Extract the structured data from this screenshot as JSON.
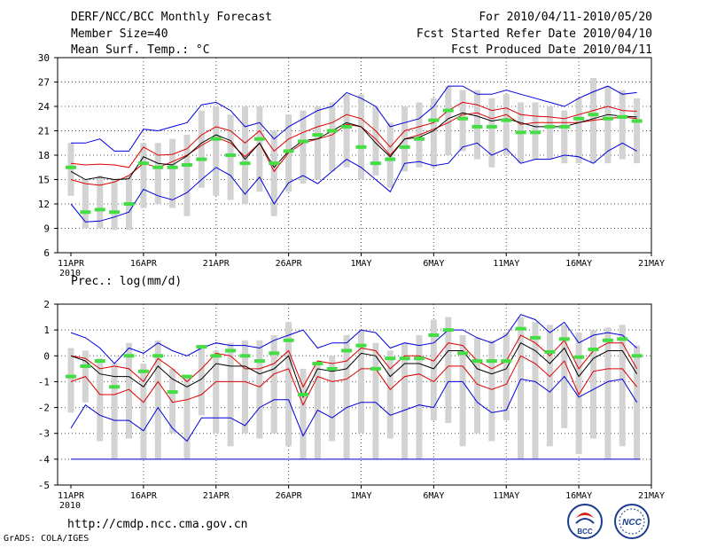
{
  "header": {
    "title": "DERF/NCC/BCC Monthly Forecast",
    "member_size": "Member Size=40",
    "variable": "Mean Surf. Temp.: °C",
    "period": "For 2010/04/11-2010/05/20",
    "refer_date": "Fcst Started Refer Date 2010/04/10",
    "produced_date": "Fcst Produced Date 2010/04/11"
  },
  "footer": {
    "url": "http://cmdp.ncc.cma.gov.cn",
    "credit": "GrADS: COLA/IGES",
    "logo_left": "BCC",
    "logo_right": "NCC"
  },
  "colors": {
    "bar": "#d3d3d3",
    "observed": "#44dd44",
    "ensemble_mean": "#000000",
    "spread": "#dd0000",
    "extreme": "#0000dd",
    "grid": "#555555"
  },
  "chart_data": [
    {
      "type": "line",
      "title": "Mean Surf. Temp.: °C",
      "ylim": [
        6,
        30
      ],
      "yticks": [
        6,
        9,
        12,
        15,
        18,
        21,
        24,
        27,
        30
      ],
      "xticks": [
        {
          "day": 0,
          "label": "11APR"
        },
        {
          "day": 5,
          "label": "16APR"
        },
        {
          "day": 10,
          "label": "21APR"
        },
        {
          "day": 15,
          "label": "26APR"
        },
        {
          "day": 20,
          "label": "1MAY"
        },
        {
          "day": 25,
          "label": "6MAY"
        },
        {
          "day": 30,
          "label": "11MAY"
        },
        {
          "day": 35,
          "label": "16MAY"
        },
        {
          "day": 40,
          "label": "21MAY"
        }
      ],
      "year_label": "2010",
      "series": [
        {
          "name": "max",
          "values": [
            12,
            9.8,
            9.9,
            10.4,
            11,
            13.8,
            13,
            12.5,
            13.4,
            15,
            16.5,
            15.5,
            13.2,
            15.3,
            12,
            14.6,
            15.5,
            14.5,
            16,
            17.5,
            16.5,
            15,
            13.5,
            17,
            17.2,
            16.7,
            17,
            19,
            19.5,
            18,
            18.8,
            17,
            17.5,
            17.5,
            18,
            17.8,
            17,
            18.5,
            19.5,
            18.5
          ]
        },
        {
          "name": "upper_spread",
          "values": [
            15,
            14.5,
            14.3,
            14.7,
            15.5,
            17,
            16.5,
            17.2,
            18,
            19.2,
            20.2,
            19.5,
            17.8,
            19.5,
            16,
            18.3,
            19.5,
            20,
            20.5,
            21.8,
            21.5,
            20,
            18,
            20,
            20.5,
            21.2,
            22,
            23,
            23.2,
            22.5,
            23,
            21.8,
            22,
            22,
            22,
            22,
            22.3,
            22.5,
            22.7,
            22.5
          ]
        },
        {
          "name": "mean",
          "values": [
            16,
            15,
            15.3,
            15,
            15.1,
            17.8,
            17,
            16.8,
            17.9,
            19.5,
            20.5,
            19.8,
            17.5,
            19.5,
            16.5,
            18.5,
            19.8,
            20,
            21,
            22,
            21.5,
            19.5,
            17.8,
            20,
            20.2,
            21,
            22.5,
            23.2,
            22.8,
            22.2,
            22.5,
            22,
            21.5,
            21.5,
            21.5,
            22,
            22.5,
            23,
            22.8,
            22.7
          ]
        },
        {
          "name": "lower_spread",
          "values": [
            17,
            16.8,
            16.9,
            16.8,
            16.5,
            19,
            18,
            18.1,
            18.8,
            20.5,
            21.5,
            21,
            19.5,
            21,
            18.5,
            20,
            20.8,
            21.5,
            22,
            23,
            22.5,
            21,
            19,
            21,
            21.5,
            22,
            23.5,
            24.5,
            24.2,
            23.5,
            23.8,
            23,
            22.8,
            22.7,
            22.5,
            23,
            23.5,
            24,
            23.5,
            23.4
          ]
        },
        {
          "name": "min",
          "values": [
            19.5,
            19.5,
            20,
            18.5,
            18.5,
            21.2,
            21,
            21.5,
            22,
            24.2,
            24.5,
            23.5,
            21.5,
            22,
            20,
            21.5,
            22.5,
            23.5,
            24,
            25.7,
            25,
            24,
            21.5,
            22,
            22.5,
            24,
            26.5,
            26.5,
            25.5,
            25.5,
            26,
            25.5,
            25,
            24.5,
            24,
            25,
            25.8,
            26.5,
            25.5,
            25.7
          ]
        },
        {
          "name": "observed",
          "values": [
            16.5,
            11,
            11.3,
            11,
            12,
            17,
            16.5,
            16.5,
            16.8,
            17.5,
            20,
            18,
            17,
            20,
            17,
            18.5,
            19.7,
            20.5,
            21,
            21.5,
            19,
            17,
            17.5,
            19,
            20,
            22.3,
            23.5,
            22.5,
            21.5,
            21.5,
            22.3,
            20.8,
            20.8,
            21.5,
            21.5,
            22.5,
            23,
            22.5,
            22.7,
            22.2
          ]
        }
      ],
      "bars": [
        [
          13,
          19.5
        ],
        [
          9,
          15
        ],
        [
          9,
          15.5
        ],
        [
          8.8,
          15
        ],
        [
          8.8,
          15.5
        ],
        [
          11.5,
          19.5
        ],
        [
          12,
          19.5
        ],
        [
          11.5,
          20
        ],
        [
          10.5,
          20.5
        ],
        [
          14,
          23.5
        ],
        [
          13,
          24
        ],
        [
          12.5,
          23
        ],
        [
          12,
          24
        ],
        [
          13.5,
          24
        ],
        [
          10.5,
          21
        ],
        [
          13.5,
          23
        ],
        [
          14.5,
          23.5
        ],
        [
          15,
          24
        ],
        [
          16,
          24.5
        ],
        [
          16.5,
          25.5
        ],
        [
          15,
          25.5
        ],
        [
          15.5,
          24
        ],
        [
          14,
          22
        ],
        [
          16,
          24
        ],
        [
          16.5,
          24.5
        ],
        [
          16.5,
          25
        ],
        [
          18,
          26.5
        ],
        [
          18.5,
          26
        ],
        [
          17.5,
          26
        ],
        [
          16.5,
          25
        ],
        [
          18,
          25.5
        ],
        [
          17,
          24.5
        ],
        [
          17.5,
          24.5
        ],
        [
          17.5,
          24
        ],
        [
          17,
          23.5
        ],
        [
          17,
          25
        ],
        [
          17,
          27.5
        ],
        [
          17,
          26.5
        ],
        [
          17.5,
          26
        ],
        [
          17,
          25
        ]
      ]
    },
    {
      "type": "line",
      "title": "Prec.: log(mm/d)",
      "ylim": [
        -5,
        2
      ],
      "yticks": [
        -5,
        -4,
        -3,
        -2,
        -1,
        0,
        1,
        2
      ],
      "xticks": [
        {
          "day": 0,
          "label": "11APR"
        },
        {
          "day": 5,
          "label": "16APR"
        },
        {
          "day": 10,
          "label": "21APR"
        },
        {
          "day": 15,
          "label": "26APR"
        },
        {
          "day": 20,
          "label": "1MAY"
        },
        {
          "day": 25,
          "label": "6MAY"
        },
        {
          "day": 30,
          "label": "11MAY"
        },
        {
          "day": 35,
          "label": "16MAY"
        },
        {
          "day": 40,
          "label": "21MAY"
        }
      ],
      "year_label": "2010",
      "floor_value": -4,
      "series": [
        {
          "name": "max",
          "values": [
            0.9,
            0.7,
            0.3,
            -0.3,
            0.3,
            0.1,
            0.5,
            0.2,
            0,
            0.3,
            0.5,
            0.4,
            0.4,
            0.3,
            0.6,
            0.8,
            1,
            0.3,
            0.5,
            0.5,
            1,
            0.9,
            0.3,
            0.5,
            0.4,
            0.5,
            1,
            1,
            0.7,
            0.5,
            0.8,
            1.6,
            1.4,
            0.9,
            1.3,
            0.5,
            0.8,
            0.9,
            0.8,
            0.3
          ]
        },
        {
          "name": "upper_spread",
          "values": [
            0,
            -0.1,
            -0.5,
            -0.4,
            -0.5,
            -1,
            -0.1,
            -0.5,
            -1,
            -0.5,
            0.1,
            0,
            -0.5,
            -0.5,
            -0.3,
            0.2,
            -1.2,
            -0.2,
            -0.3,
            -0.2,
            0.3,
            0.2,
            -0.5,
            0,
            0,
            -0.2,
            0.5,
            0.4,
            -0.2,
            -0.5,
            -0.2,
            0.8,
            0.5,
            0,
            0.6,
            -0.5,
            0.2,
            0.5,
            0.5,
            -0.5
          ]
        },
        {
          "name": "mean",
          "values": [
            0,
            -0.2,
            -0.7,
            -0.8,
            -0.8,
            -1.2,
            -0.4,
            -0.9,
            -1.2,
            -0.9,
            -0.3,
            -0.4,
            -0.4,
            -0.7,
            -0.5,
            0,
            -1.6,
            -0.5,
            -0.6,
            -0.5,
            0.1,
            0,
            -0.8,
            -0.3,
            -0.3,
            -0.5,
            0.2,
            0.2,
            -0.5,
            -0.7,
            -0.5,
            0.5,
            0.2,
            -0.3,
            0.3,
            -0.8,
            -0.1,
            0.2,
            0.2,
            -0.7
          ]
        },
        {
          "name": "lower_spread",
          "values": [
            -1,
            -0.8,
            -1.5,
            -1.5,
            -1.3,
            -1.8,
            -1,
            -1.8,
            -1.7,
            -1.5,
            -1,
            -1,
            -1,
            -1.2,
            -0.7,
            -0.5,
            -1.9,
            -0.8,
            -1,
            -0.9,
            -0.5,
            -0.5,
            -1.3,
            -0.8,
            -0.7,
            -1,
            -0.4,
            -0.4,
            -1.1,
            -1.3,
            -1.1,
            0,
            -0.3,
            -0.8,
            -0.2,
            -1.5,
            -0.6,
            -0.5,
            -0.5,
            -1.2
          ]
        },
        {
          "name": "min",
          "values": [
            -2.8,
            -1.9,
            -2.3,
            -2.5,
            -2.5,
            -2.9,
            -2,
            -2.8,
            -3.3,
            -2.4,
            -2.4,
            -2.4,
            -2.7,
            -2,
            -1.7,
            -1.7,
            -3.1,
            -2.1,
            -2.4,
            -2,
            -1.8,
            -1.8,
            -2.3,
            -2.1,
            -1.9,
            -2,
            -1,
            -1,
            -1.8,
            -2.2,
            -2.1,
            -0.9,
            -1,
            -1.4,
            -0.8,
            -1.6,
            -1.3,
            -1,
            -0.9,
            -1.8
          ]
        },
        {
          "name": "observed",
          "values": [
            -0.8,
            -0.4,
            -0.2,
            -1.2,
            0,
            -0.6,
            0,
            -1.4,
            -0.8,
            0.35,
            0,
            0.2,
            0,
            -0.2,
            0.1,
            0.6,
            -1.5,
            -0.3,
            -0.5,
            0.2,
            0.4,
            -0.5,
            -0.1,
            -0.1,
            -0.1,
            0.8,
            1,
            0.1,
            -0.2,
            -0.2,
            -0.2,
            1.05,
            0.7,
            0.15,
            0.65,
            -0.05,
            0.25,
            0.6,
            0.65,
            0
          ]
        }
      ],
      "bars": [
        [
          -2.2,
          0.3
        ],
        [
          -1.8,
          0.2
        ],
        [
          -3.3,
          -0.1
        ],
        [
          -4,
          -0.3
        ],
        [
          -3.2,
          0.5
        ],
        [
          -4,
          -0.3
        ],
        [
          -4,
          0.6
        ],
        [
          -3,
          -0.5
        ],
        [
          -4,
          -0.8
        ],
        [
          -2.3,
          0.4
        ],
        [
          -3,
          0.2
        ],
        [
          -3.5,
          0.5
        ],
        [
          -3,
          0.6
        ],
        [
          -3.2,
          0.6
        ],
        [
          -3,
          0.8
        ],
        [
          -3.5,
          1.3
        ],
        [
          -4,
          -0.5
        ],
        [
          -4,
          -0.3
        ],
        [
          -3.3,
          0
        ],
        [
          -4,
          0.8
        ],
        [
          -3,
          1
        ],
        [
          -4,
          0.5
        ],
        [
          -3.2,
          0.2
        ],
        [
          -4,
          0.5
        ],
        [
          -4,
          0.8
        ],
        [
          -2.5,
          1.4
        ],
        [
          -2.6,
          1.5
        ],
        [
          -3.5,
          0.8
        ],
        [
          -3,
          0.7
        ],
        [
          -3.3,
          0.6
        ],
        [
          -2.5,
          0.9
        ],
        [
          -4,
          1.5
        ],
        [
          -4,
          1.3
        ],
        [
          -3.5,
          1.2
        ],
        [
          -2.8,
          1.2
        ],
        [
          -3.8,
          0.9
        ],
        [
          -3.2,
          1
        ],
        [
          -4,
          1.1
        ],
        [
          -3.5,
          1.2
        ],
        [
          -4,
          0.4
        ]
      ]
    }
  ]
}
